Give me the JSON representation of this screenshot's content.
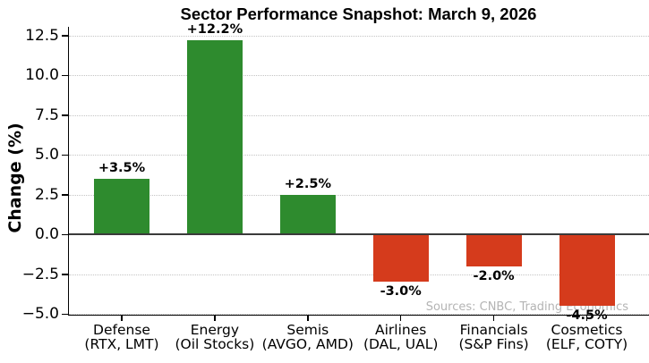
{
  "chart_data": {
    "type": "bar",
    "title": "Sector Performance Snapshot: March 9, 2026",
    "xlabel": "",
    "ylabel": "Change (%)",
    "categories": [
      "Defense (RTX, LMT)",
      "Energy (Oil Stocks)",
      "Semis (AVGO, AMD)",
      "Airlines (DAL, UAL)",
      "Financials (S&P Fins)",
      "Cosmetics (ELF, COTY)"
    ],
    "category_lines": [
      [
        "Defense",
        "(RTX, LMT)"
      ],
      [
        "Energy",
        "(Oil Stocks)"
      ],
      [
        "Semis",
        "(AVGO, AMD)"
      ],
      [
        "Airlines",
        "(DAL, UAL)"
      ],
      [
        "Financials",
        "(S&P Fins)"
      ],
      [
        "Cosmetics",
        "(ELF, COTY)"
      ]
    ],
    "values": [
      3.5,
      12.2,
      2.5,
      -3.0,
      -2.0,
      -4.5
    ],
    "bar_labels": [
      "+3.5%",
      "+12.2%",
      "+2.5%",
      "-3.0%",
      "-2.0%",
      "-4.5%"
    ],
    "positive_color": "#2e8b2e",
    "negative_color": "#d53b1c",
    "yticks": [
      12.5,
      10.0,
      7.5,
      5.0,
      2.5,
      0.0,
      -2.5,
      -5.0
    ],
    "ytick_labels": [
      "12.5",
      "10.0",
      "7.5",
      "5.0",
      "2.5",
      "0.0",
      "−2.5",
      "−5.0"
    ],
    "ylim": [
      -5.1,
      13.0
    ],
    "grid": "horizontal-dotted",
    "legend": "none",
    "source_note": "Sources: CNBC, Trading Economics"
  }
}
